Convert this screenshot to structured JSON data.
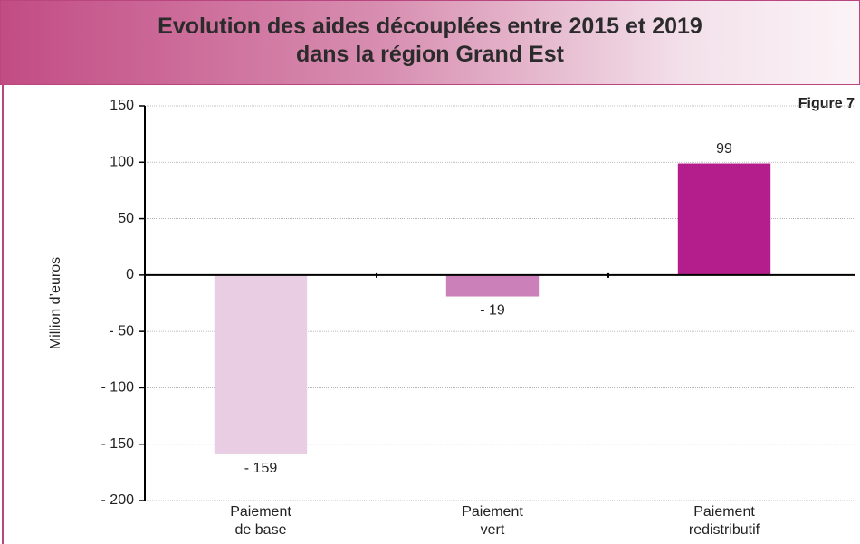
{
  "chart_data": {
    "type": "bar",
    "title": "Evolution des aides découplées entre 2015 et 2019\ndans la région Grand Est",
    "figure_label": "Figure 7",
    "y_axis_label": "Million d’euros",
    "categories": [
      "Paiement\nde base",
      "Paiement\nvert",
      "Paiement\nredistributif"
    ],
    "values": [
      -159,
      -19,
      99
    ],
    "value_labels": [
      "- 159",
      "- 19",
      "99"
    ],
    "colors": [
      "#e8cde3",
      "#cc80b9",
      "#b41e8c"
    ],
    "ylim": [
      -200,
      150
    ],
    "yticks": [
      {
        "value": -200,
        "label": "- 200"
      },
      {
        "value": -150,
        "label": "- 150"
      },
      {
        "value": -100,
        "label": "- 100"
      },
      {
        "value": -50,
        "label": "- 50"
      },
      0,
      50,
      100,
      150
    ],
    "grid": true
  }
}
